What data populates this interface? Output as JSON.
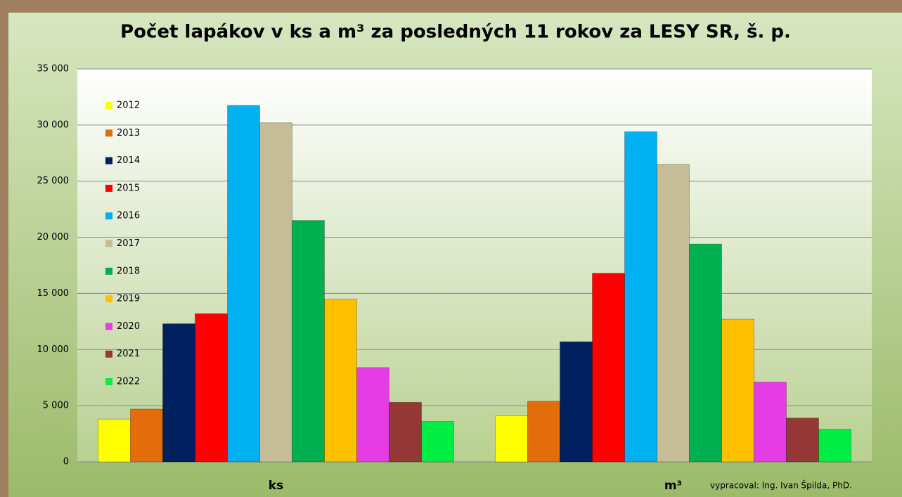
{
  "chart_data": {
    "type": "bar",
    "title": "Počet lapákov v ks a m³ za posledných 11 rokov za LESY SR, š. p.",
    "categories": [
      "ks",
      "m³"
    ],
    "series": [
      {
        "name": "2012",
        "color": "#ffff00",
        "values": [
          3800,
          4100
        ]
      },
      {
        "name": "2013",
        "color": "#e46c0a",
        "values": [
          4700,
          5400
        ]
      },
      {
        "name": "2014",
        "color": "#002060",
        "values": [
          12300,
          10700
        ]
      },
      {
        "name": "2015",
        "color": "#ff0000",
        "values": [
          13200,
          16800
        ]
      },
      {
        "name": "2016",
        "color": "#00b0f0",
        "values": [
          31750,
          29400
        ]
      },
      {
        "name": "2017",
        "color": "#c4bd97",
        "values": [
          30200,
          26500
        ]
      },
      {
        "name": "2018",
        "color": "#00b050",
        "values": [
          21500,
          19400
        ]
      },
      {
        "name": "2019",
        "color": "#ffc000",
        "values": [
          14500,
          12700
        ]
      },
      {
        "name": "2020",
        "color": "#e63ce6",
        "values": [
          8400,
          7100
        ]
      },
      {
        "name": "2021",
        "color": "#953735",
        "values": [
          5300,
          3900
        ]
      },
      {
        "name": "2022",
        "color": "#00ee44",
        "values": [
          3600,
          2900
        ]
      }
    ],
    "ylim": [
      0,
      35000
    ],
    "yticks": [
      0,
      {
        "value": 5000,
        "label": "5 000"
      },
      {
        "value": 10000,
        "label": "10 000"
      },
      {
        "value": 15000,
        "label": "15 000"
      },
      {
        "value": 20000,
        "label": "20 000"
      },
      {
        "value": 25000,
        "label": "25 000"
      },
      {
        "value": 30000,
        "label": "30 000"
      },
      {
        "value": 35000,
        "label": "35 000"
      }
    ],
    "grid": true,
    "legend": "left",
    "annotation": "vypracoval: Ing. Ivan Špilda, PhD."
  }
}
